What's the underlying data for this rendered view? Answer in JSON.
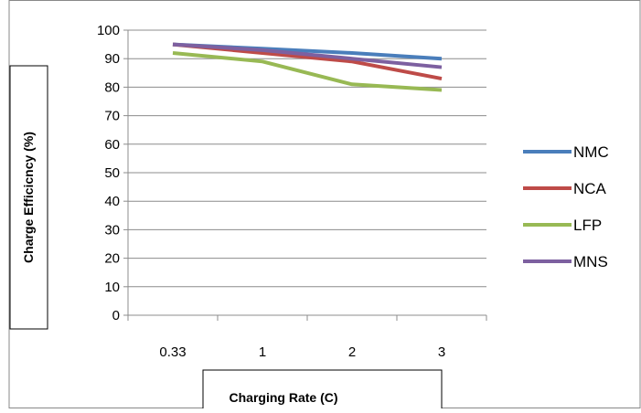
{
  "chart_data": {
    "type": "line",
    "xlabel": "Charging Rate (C)",
    "ylabel": "Charge Efficicncy (%)",
    "categories": [
      "0.33",
      "1",
      "2",
      "3"
    ],
    "ylim": [
      0,
      100
    ],
    "yticks": [
      0,
      10,
      20,
      30,
      40,
      50,
      60,
      70,
      80,
      90,
      100
    ],
    "grid": true,
    "legend_position": "right",
    "series": [
      {
        "name": "NMC",
        "color": "#4a7ebb",
        "values": [
          95,
          93.5,
          92,
          90
        ]
      },
      {
        "name": "NCA",
        "color": "#be4b48",
        "values": [
          95,
          92,
          89,
          83
        ]
      },
      {
        "name": "LFP",
        "color": "#98b954",
        "values": [
          92,
          89,
          81,
          79
        ]
      },
      {
        "name": "MNS",
        "color": "#7d60a0",
        "values": [
          95,
          93,
          90,
          87
        ]
      }
    ]
  }
}
